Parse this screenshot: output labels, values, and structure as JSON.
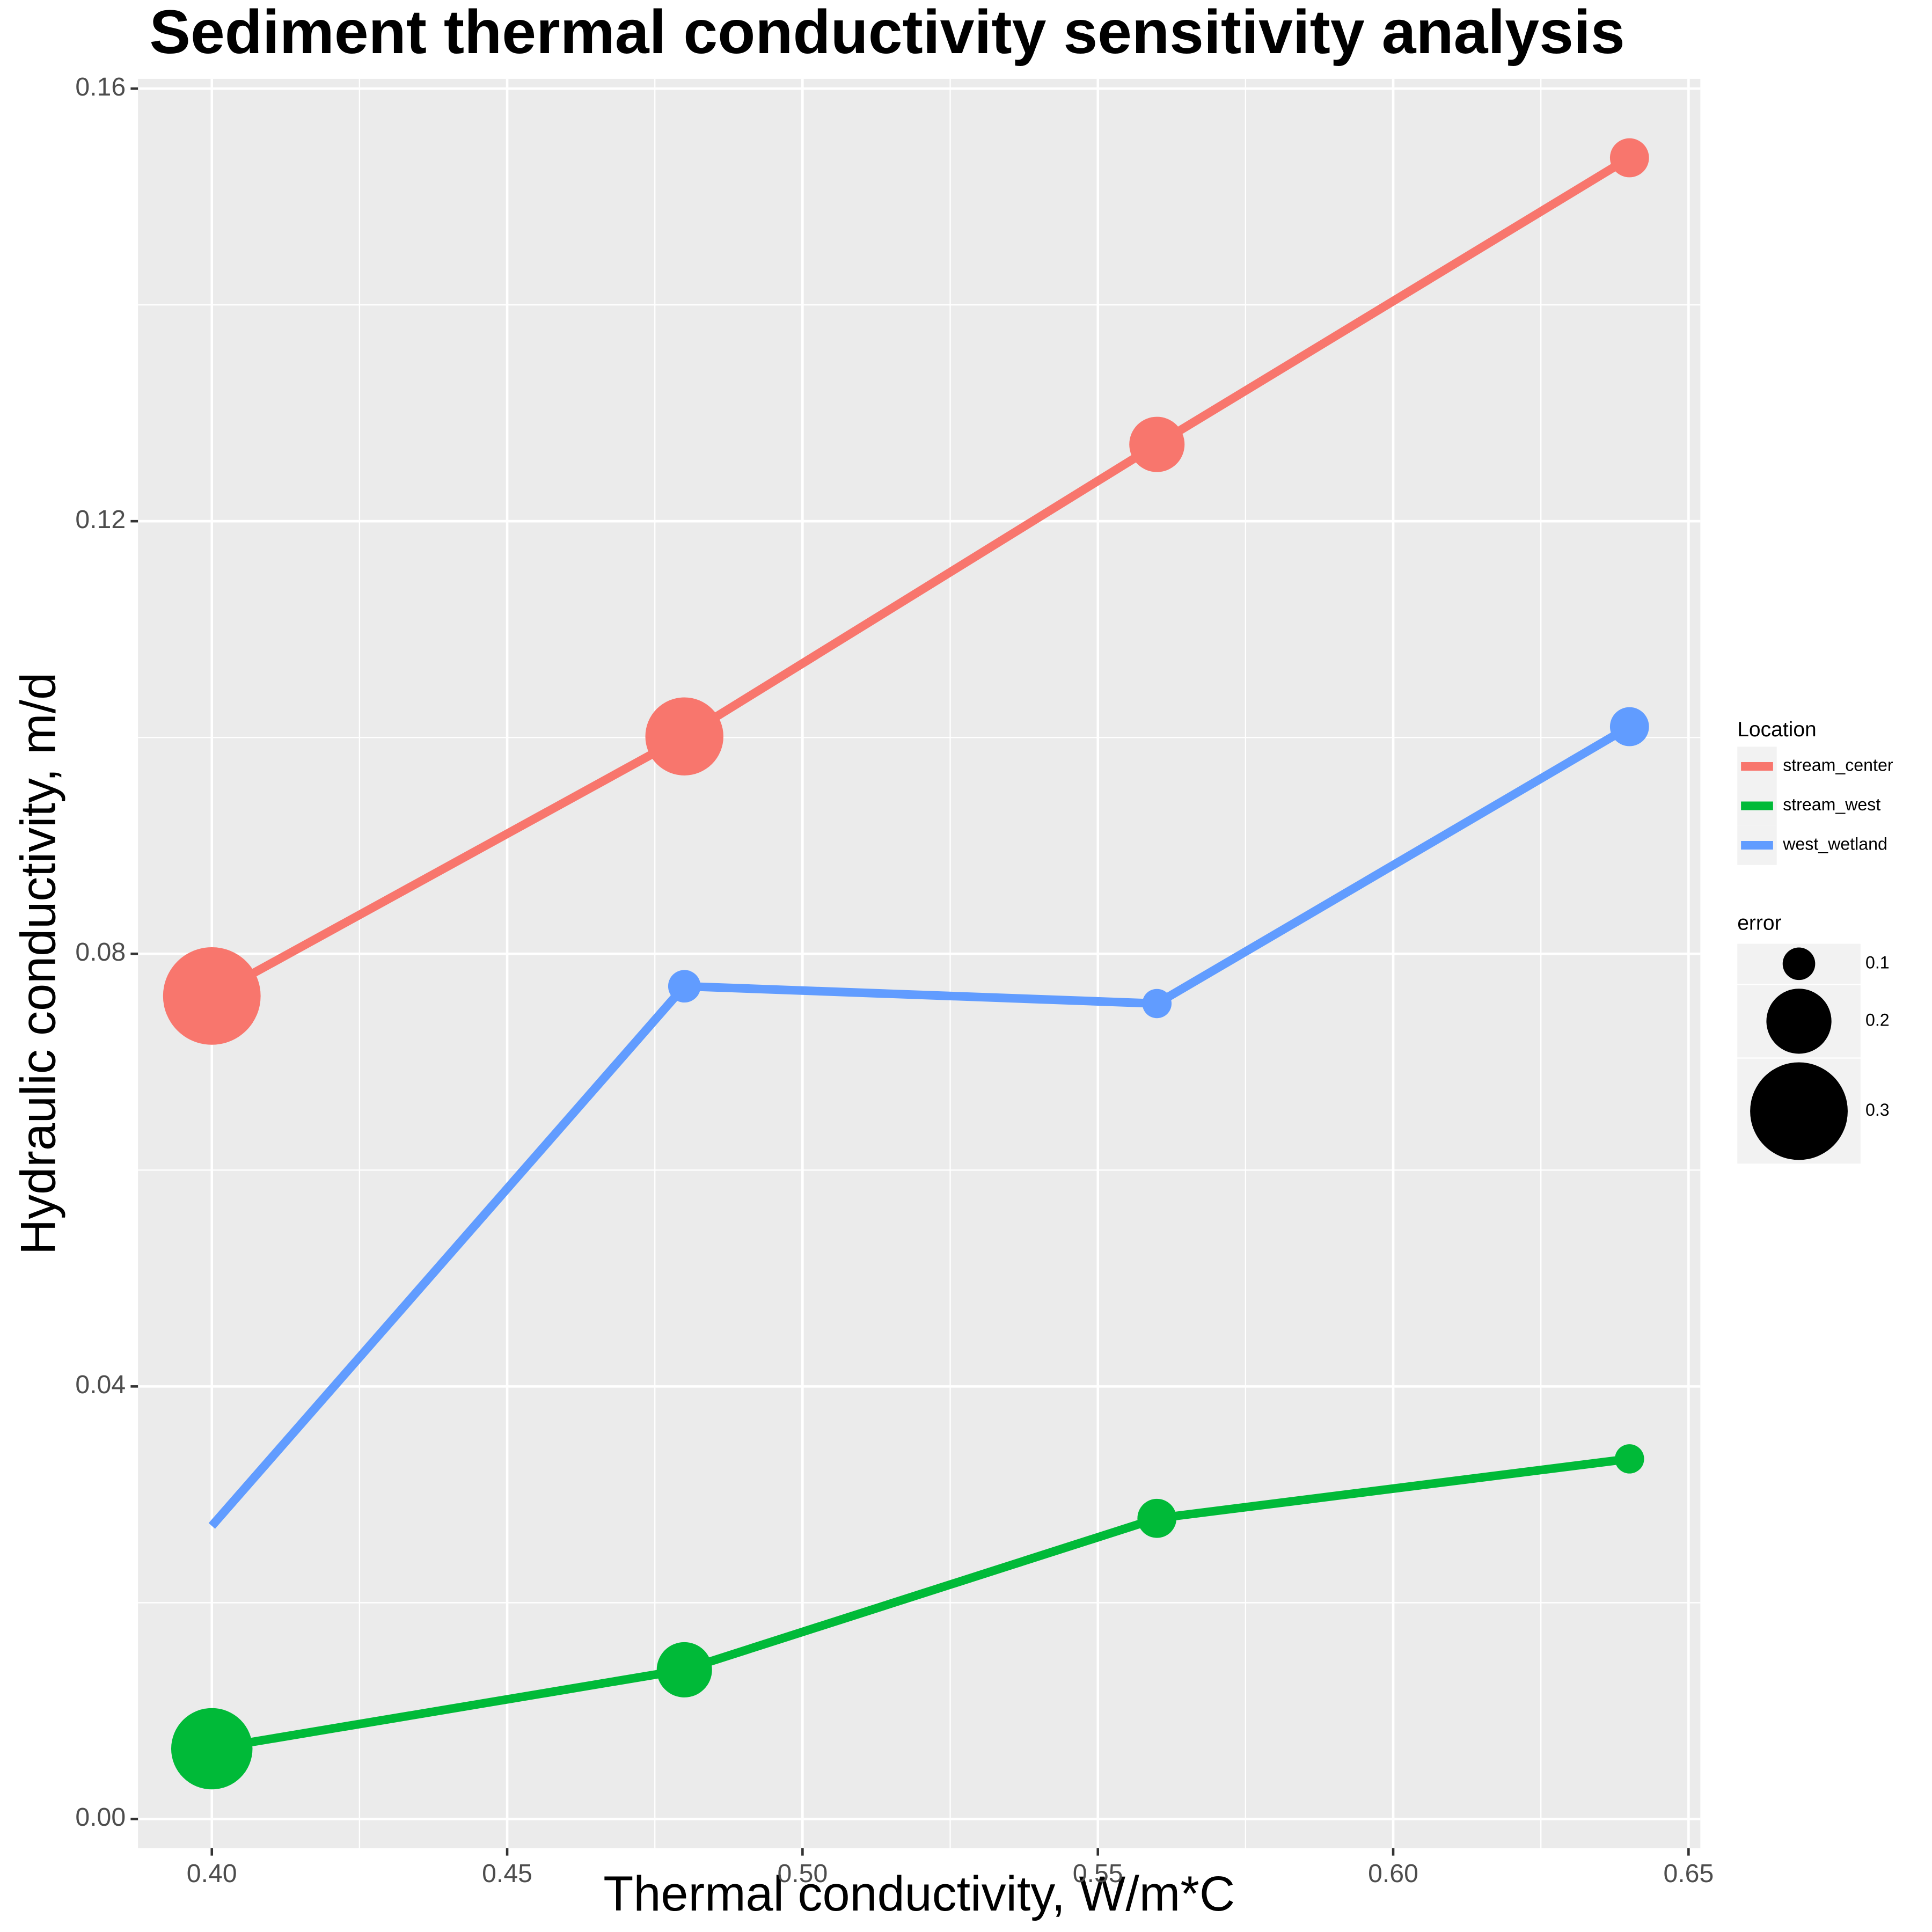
{
  "chart_data": {
    "type": "line",
    "title": "Sediment thermal conductivity sensitivity analysis",
    "x_label": "Thermal conductivity, W/m*C",
    "y_label": "Hydraulic conductivity, m/d",
    "x": [
      0.4,
      0.48,
      0.56,
      0.64
    ],
    "series": [
      {
        "name": "stream_center",
        "color": "#F8766D",
        "values": [
          0.0761,
          0.1001,
          0.1271,
          0.1536
        ],
        "error": [
          0.3,
          0.24,
          0.17,
          0.12
        ]
      },
      {
        "name": "stream_west",
        "color": "#00BA38",
        "values": [
          0.0065,
          0.0138,
          0.0278,
          0.0333
        ],
        "error": [
          0.25,
          0.17,
          0.12,
          0.09
        ]
      },
      {
        "name": "west_wetland",
        "color": "#619CFF",
        "values": [
          0.0271,
          0.077,
          0.0754,
          0.101
        ],
        "error": [
          null,
          0.1,
          0.09,
          0.12
        ]
      }
    ],
    "xlim": [
      0.3875,
      0.652
    ],
    "ylim": [
      -0.0027,
      0.1609
    ],
    "xticks": [
      {
        "value": 0.4,
        "label": "0.40"
      },
      0.45,
      {
        "value": 0.5,
        "label": "0.50"
      },
      0.55,
      {
        "value": 0.6,
        "label": "0.60"
      },
      0.65
    ],
    "yticks": [
      {
        "value": 0,
        "label": "0.00"
      },
      0.04,
      0.08,
      0.12,
      0.16
    ],
    "grid": true,
    "legend_title": "Location",
    "size_legend": {
      "title": "error",
      "values": [
        0.1,
        0.2,
        0.3
      ]
    },
    "legend_position": "right"
  }
}
